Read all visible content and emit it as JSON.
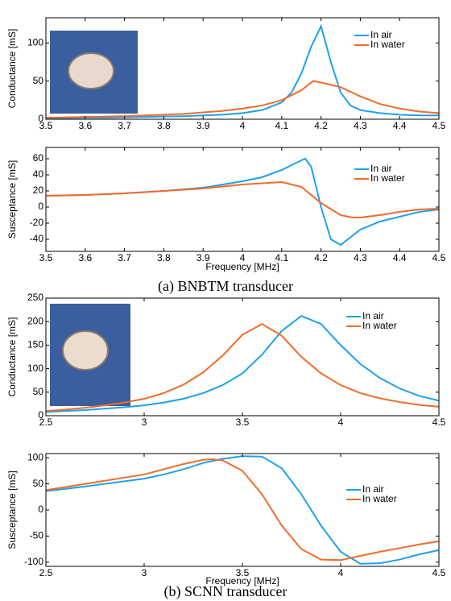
{
  "captions": [
    "(a) BNBTM transducer",
    "(b) SCNN transducer"
  ],
  "chart_data": [
    {
      "type": "line",
      "ylabel": "Conductance [mS]",
      "legend": "upper right",
      "grid": false,
      "xlim": [
        3.5,
        4.5
      ],
      "ylim": [
        0,
        133
      ],
      "xticks": [
        3.5,
        3.6,
        3.7,
        3.8,
        3.9,
        4,
        4.1,
        4.2,
        4.3,
        4.4,
        4.5
      ],
      "yticks": [
        0,
        50,
        100
      ],
      "series": [
        {
          "name": "In air",
          "color": "#1ea0ef",
          "x": [
            3.5,
            3.55,
            3.6,
            3.65,
            3.7,
            3.75,
            3.8,
            3.85,
            3.9,
            3.95,
            4.0,
            4.05,
            4.1,
            4.125,
            4.15,
            4.175,
            4.2,
            4.225,
            4.25,
            4.275,
            4.3,
            4.35,
            4.4,
            4.45,
            4.5
          ],
          "values": [
            1,
            1.5,
            2,
            2,
            2.5,
            3,
            3.5,
            4,
            5,
            6,
            8,
            12,
            22,
            35,
            60,
            95,
            122,
            75,
            35,
            18,
            12,
            8,
            6,
            5,
            5
          ]
        },
        {
          "name": "In water",
          "color": "#f26b2a",
          "x": [
            3.5,
            3.55,
            3.6,
            3.65,
            3.7,
            3.75,
            3.8,
            3.85,
            3.9,
            3.95,
            4.0,
            4.05,
            4.1,
            4.15,
            4.18,
            4.2,
            4.25,
            4.3,
            4.35,
            4.4,
            4.45,
            4.5
          ],
          "values": [
            2,
            2.5,
            3,
            3.5,
            4,
            5,
            6,
            7,
            9,
            11,
            14,
            18,
            25,
            38,
            50,
            48,
            42,
            30,
            20,
            14,
            10,
            8
          ]
        }
      ]
    },
    {
      "type": "line",
      "ylabel": "Susceptance [mS]",
      "xlabel": "Frequency [MHz]",
      "legend": "upper right",
      "grid": false,
      "xlim": [
        3.5,
        4.5
      ],
      "ylim": [
        -55,
        74
      ],
      "xticks": [
        3.5,
        3.6,
        3.7,
        3.8,
        3.9,
        4,
        4.1,
        4.2,
        4.3,
        4.4,
        4.5
      ],
      "yticks": [
        -40,
        -20,
        0,
        20,
        40,
        60
      ],
      "series": [
        {
          "name": "In air",
          "color": "#1ea0ef",
          "x": [
            3.5,
            3.6,
            3.7,
            3.8,
            3.9,
            4.0,
            4.05,
            4.1,
            4.15,
            4.16,
            4.175,
            4.2,
            4.225,
            4.25,
            4.3,
            4.35,
            4.4,
            4.45,
            4.5
          ],
          "values": [
            14,
            15,
            17,
            20,
            24,
            32,
            37,
            46,
            58,
            60,
            50,
            0,
            -40,
            -47,
            -28,
            -18,
            -12,
            -6,
            -3
          ]
        },
        {
          "name": "In water",
          "color": "#f26b2a",
          "x": [
            3.5,
            3.6,
            3.7,
            3.8,
            3.9,
            4.0,
            4.1,
            4.15,
            4.2,
            4.25,
            4.28,
            4.3,
            4.35,
            4.4,
            4.45,
            4.5
          ],
          "values": [
            14,
            15,
            17,
            20,
            23,
            28,
            31,
            25,
            5,
            -10,
            -13,
            -13,
            -10,
            -6,
            -3,
            -2
          ]
        }
      ]
    },
    {
      "type": "line",
      "ylabel": "Conductance [mS]",
      "legend": "upper right",
      "grid": false,
      "xlim": [
        2.5,
        4.5
      ],
      "ylim": [
        0,
        250
      ],
      "xticks": [
        2.5,
        3,
        3.5,
        4,
        4.5
      ],
      "yticks": [
        0,
        50,
        100,
        150,
        200,
        250
      ],
      "series": [
        {
          "name": "In air",
          "color": "#1ea0ef",
          "x": [
            2.5,
            2.6,
            2.7,
            2.8,
            2.9,
            3.0,
            3.1,
            3.2,
            3.3,
            3.4,
            3.5,
            3.6,
            3.7,
            3.8,
            3.9,
            4.0,
            4.1,
            4.2,
            4.3,
            4.4,
            4.5
          ],
          "values": [
            8,
            10,
            12,
            15,
            18,
            22,
            28,
            36,
            48,
            65,
            90,
            130,
            180,
            212,
            195,
            150,
            110,
            80,
            58,
            42,
            32
          ]
        },
        {
          "name": "In water",
          "color": "#f26b2a",
          "x": [
            2.5,
            2.6,
            2.7,
            2.8,
            2.9,
            3.0,
            3.1,
            3.2,
            3.3,
            3.4,
            3.5,
            3.6,
            3.7,
            3.8,
            3.9,
            4.0,
            4.1,
            4.2,
            4.3,
            4.4,
            4.5
          ],
          "values": [
            10,
            13,
            17,
            22,
            28,
            36,
            48,
            66,
            92,
            128,
            172,
            195,
            170,
            125,
            90,
            65,
            48,
            37,
            29,
            23,
            19
          ]
        }
      ]
    },
    {
      "type": "line",
      "ylabel": "Susceptance [mS]",
      "xlabel": "Frequency [MHz]",
      "legend": "upper right",
      "grid": false,
      "xlim": [
        2.5,
        4.5
      ],
      "ylim": [
        -108,
        108
      ],
      "xticks": [
        2.5,
        3,
        3.5,
        4,
        4.5
      ],
      "yticks": [
        -100,
        -50,
        0,
        50,
        100
      ],
      "series": [
        {
          "name": "In air",
          "color": "#1ea0ef",
          "x": [
            2.5,
            2.7,
            2.9,
            3.0,
            3.1,
            3.2,
            3.3,
            3.4,
            3.5,
            3.6,
            3.7,
            3.8,
            3.9,
            4.0,
            4.1,
            4.2,
            4.3,
            4.4,
            4.5
          ],
          "values": [
            36,
            45,
            55,
            60,
            68,
            78,
            90,
            98,
            103,
            102,
            80,
            30,
            -30,
            -80,
            -103,
            -102,
            -95,
            -85,
            -77
          ]
        },
        {
          "name": "In water",
          "color": "#f26b2a",
          "x": [
            2.5,
            2.7,
            2.9,
            3.0,
            3.1,
            3.2,
            3.3,
            3.35,
            3.4,
            3.5,
            3.6,
            3.7,
            3.8,
            3.9,
            4.0,
            4.1,
            4.2,
            4.3,
            4.4,
            4.5
          ],
          "values": [
            38,
            50,
            62,
            68,
            78,
            88,
            96,
            97,
            95,
            75,
            30,
            -30,
            -75,
            -95,
            -96,
            -88,
            -80,
            -73,
            -66,
            -60
          ]
        }
      ]
    }
  ]
}
